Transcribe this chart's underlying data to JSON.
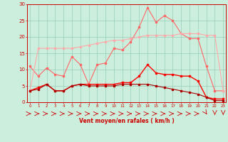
{
  "x": [
    0,
    1,
    2,
    3,
    4,
    5,
    6,
    7,
    8,
    9,
    10,
    11,
    12,
    13,
    14,
    15,
    16,
    17,
    18,
    19,
    20,
    21,
    22,
    23
  ],
  "series": [
    {
      "name": "max_rafales",
      "color": "#ff6666",
      "linewidth": 0.8,
      "markersize": 2.0,
      "y": [
        11.0,
        8.0,
        10.5,
        8.5,
        8.0,
        14.0,
        11.5,
        5.5,
        11.5,
        12.0,
        16.5,
        16.0,
        18.5,
        23.0,
        29.0,
        24.5,
        26.5,
        25.0,
        21.0,
        19.5,
        19.5,
        11.0,
        3.5,
        3.5
      ]
    },
    {
      "name": "mean_upper",
      "color": "#ffaaaa",
      "linewidth": 0.8,
      "markersize": 2.0,
      "y": [
        3.5,
        16.5,
        16.5,
        16.5,
        16.5,
        16.5,
        17.0,
        17.5,
        18.0,
        18.5,
        19.0,
        19.0,
        19.5,
        20.0,
        20.5,
        20.5,
        20.5,
        20.5,
        21.0,
        21.0,
        21.0,
        20.5,
        20.5,
        3.5
      ]
    },
    {
      "name": "mean_wind",
      "color": "#ff0000",
      "linewidth": 1.0,
      "markersize": 2.0,
      "y": [
        3.5,
        4.5,
        5.5,
        3.5,
        3.5,
        5.0,
        5.5,
        5.5,
        5.5,
        5.5,
        5.5,
        6.0,
        6.0,
        8.0,
        11.5,
        9.0,
        8.5,
        8.5,
        8.0,
        8.0,
        6.5,
        1.5,
        1.0,
        1.0
      ]
    },
    {
      "name": "mean_lower",
      "color": "#aa0000",
      "linewidth": 0.8,
      "markersize": 1.5,
      "y": [
        3.5,
        4.0,
        5.5,
        3.5,
        3.5,
        5.0,
        5.5,
        5.0,
        5.0,
        5.0,
        5.0,
        5.5,
        5.5,
        5.5,
        5.5,
        5.0,
        4.5,
        4.0,
        3.5,
        3.0,
        2.5,
        1.5,
        0.5,
        0.5
      ]
    }
  ],
  "arrow_directions": [
    0,
    0,
    0,
    0,
    0,
    0,
    0,
    0,
    0,
    0,
    0,
    0,
    0,
    0,
    0,
    0,
    0,
    0,
    0,
    0,
    0,
    1,
    2,
    2
  ],
  "xlim": [
    -0.3,
    23.3
  ],
  "ylim": [
    0,
    30
  ],
  "yticks": [
    0,
    5,
    10,
    15,
    20,
    25,
    30
  ],
  "xticks": [
    0,
    1,
    2,
    3,
    4,
    5,
    6,
    7,
    8,
    9,
    10,
    11,
    12,
    13,
    14,
    15,
    16,
    17,
    18,
    19,
    20,
    21,
    22,
    23
  ],
  "xlabel": "Vent moyen/en rafales ( km/h )",
  "xlabel_color": "#cc0000",
  "background_color": "#cceedd",
  "grid_color": "#99ccbb",
  "tick_color": "#cc0000",
  "arrow_color": "#cc0000"
}
